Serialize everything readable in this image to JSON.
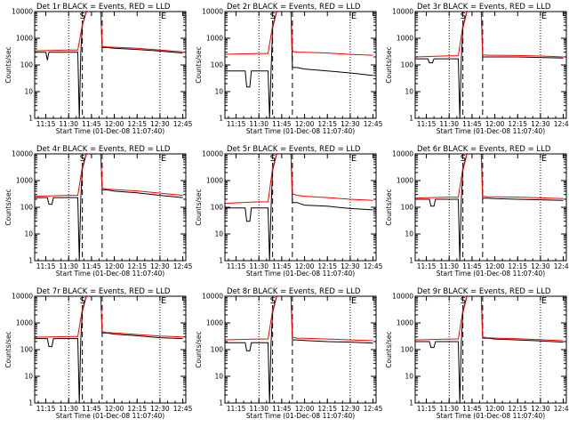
{
  "colors": {
    "events": "#000000",
    "lld": "#ff0000",
    "axes": "#000000",
    "background": "#ffffff"
  },
  "shared": {
    "xlabel": "Start Time (01-Dec-08 11:07:40)",
    "ylabel": "Counts/sec",
    "x_tick_labels": [
      "11:15",
      "11:30",
      "11:45",
      "12:00",
      "12:15",
      "12:30",
      "12:45"
    ],
    "y_tick_labels": [
      "1",
      "10",
      "100",
      "1000",
      "10000"
    ],
    "markers": [
      "S",
      "E"
    ]
  },
  "chart_data": [
    {
      "type": "line",
      "title": "Det 1r BLACK = Events, RED = LLD",
      "xlabel": "Start Time (01-Dec-08 11:07:40)",
      "ylabel": "Counts/sec",
      "x_ticks": [
        "11:15",
        "11:30",
        "11:45",
        "12:00",
        "12:15",
        "12:30",
        "12:45"
      ],
      "y_ticks": [
        "1",
        "10",
        "100",
        "1000",
        "10000"
      ],
      "y_scale": "log",
      "xlim": [
        "11:07:40",
        "12:47:00"
      ],
      "ylim": [
        1,
        10000
      ],
      "grid": false,
      "markers": [
        "S",
        "E"
      ],
      "series": [
        {
          "x": [
            "11:07",
            "11:12",
            "11:15",
            "11:16",
            "11:17",
            "11:20",
            "11:30",
            "11:36",
            "11:37",
            "11:38",
            "11:39",
            "11:42",
            "11:45",
            "11:51",
            "11:52",
            "11:55",
            "12:00",
            "12:15",
            "12:30",
            "12:45"
          ],
          "values": [
            300,
            300,
            300,
            150,
            300,
            300,
            300,
            300,
            1,
            300,
            3000,
            12000,
            12000,
            12000,
            450,
            450,
            420,
            380,
            330,
            280
          ]
        },
        {
          "x": [
            "11:07",
            "11:30",
            "11:36",
            "11:39",
            "11:42",
            "11:45",
            "11:51",
            "11:52",
            "11:55",
            "12:00",
            "12:15",
            "12:30",
            "12:45"
          ],
          "values": [
            340,
            360,
            360,
            3200,
            12000,
            12000,
            12000,
            500,
            470,
            460,
            420,
            360,
            310
          ]
        }
      ]
    },
    {
      "type": "line",
      "title": "Det 2r BLACK = Events, RED = LLD",
      "xlabel": "Start Time (01-Dec-08 11:07:40)",
      "ylabel": "Counts/sec",
      "x_ticks": [
        "11:15",
        "11:30",
        "11:45",
        "12:00",
        "12:15",
        "12:30",
        "12:45"
      ],
      "y_ticks": [
        "1",
        "10",
        "100",
        "1000",
        "10000"
      ],
      "y_scale": "log",
      "xlim": [
        "11:07:40",
        "12:47:00"
      ],
      "ylim": [
        1,
        10000
      ],
      "grid": false,
      "markers": [
        "S",
        "E"
      ],
      "series": [
        {
          "x": [
            "11:07",
            "11:15",
            "11:21",
            "11:22",
            "11:24",
            "11:25",
            "11:30",
            "11:36",
            "11:37",
            "11:38",
            "11:39",
            "11:42",
            "11:45",
            "11:51",
            "11:52",
            "11:55",
            "12:00",
            "12:15",
            "12:30",
            "12:45"
          ],
          "values": [
            60,
            60,
            60,
            15,
            15,
            60,
            60,
            60,
            1,
            60,
            2500,
            12000,
            12000,
            12000,
            80,
            80,
            70,
            60,
            50,
            40
          ]
        },
        {
          "x": [
            "11:07",
            "11:30",
            "11:36",
            "11:39",
            "11:42",
            "11:45",
            "11:51",
            "11:52",
            "11:55",
            "12:00",
            "12:15",
            "12:30",
            "12:45"
          ],
          "values": [
            250,
            270,
            270,
            3000,
            12000,
            12000,
            12000,
            320,
            300,
            300,
            280,
            250,
            230
          ]
        }
      ]
    },
    {
      "type": "line",
      "title": "Det 3r BLACK = Events, RED = LLD",
      "xlabel": "Start Time (01-Dec-08 11:07:40)",
      "ylabel": "Counts/sec",
      "x_ticks": [
        "11:15",
        "11:30",
        "11:45",
        "12:00",
        "12:15",
        "12:30",
        "12:45"
      ],
      "y_ticks": [
        "1",
        "10",
        "100",
        "1000",
        "10000"
      ],
      "y_scale": "log",
      "xlim": [
        "11:07:40",
        "12:47:00"
      ],
      "ylim": [
        1,
        10000
      ],
      "grid": false,
      "markers": [
        "S",
        "E"
      ],
      "series": [
        {
          "x": [
            "11:07",
            "11:15",
            "11:16",
            "11:17",
            "11:19",
            "11:20",
            "11:30",
            "11:36",
            "11:37",
            "11:38",
            "11:39",
            "11:42",
            "11:45",
            "11:51",
            "11:52",
            "11:55",
            "12:00",
            "12:15",
            "12:30",
            "12:45"
          ],
          "values": [
            170,
            170,
            170,
            120,
            120,
            170,
            170,
            170,
            1,
            170,
            2500,
            12000,
            12000,
            12000,
            200,
            200,
            200,
            200,
            190,
            180
          ]
        },
        {
          "x": [
            "11:07",
            "11:30",
            "11:36",
            "11:39",
            "11:42",
            "11:45",
            "11:51",
            "11:52",
            "11:55",
            "12:00",
            "12:15",
            "12:30",
            "12:45"
          ],
          "values": [
            200,
            220,
            220,
            3000,
            12000,
            12000,
            12000,
            240,
            230,
            230,
            225,
            215,
            200
          ]
        }
      ]
    },
    {
      "type": "line",
      "title": "Det 4r BLACK = Events, RED = LLD",
      "xlabel": "Start Time (01-Dec-08 11:07:40)",
      "ylabel": "Counts/sec",
      "x_ticks": [
        "11:15",
        "11:30",
        "11:45",
        "12:00",
        "12:15",
        "12:30",
        "12:45"
      ],
      "y_ticks": [
        "1",
        "10",
        "100",
        "1000",
        "10000"
      ],
      "y_scale": "log",
      "xlim": [
        "11:07:40",
        "12:47:00"
      ],
      "ylim": [
        1,
        10000
      ],
      "grid": false,
      "markers": [
        "S",
        "E"
      ],
      "series": [
        {
          "x": [
            "11:07",
            "11:15",
            "11:16",
            "11:17",
            "11:19",
            "11:20",
            "11:30",
            "11:36",
            "11:37",
            "11:38",
            "11:39",
            "11:42",
            "11:45",
            "11:51",
            "11:52",
            "11:55",
            "12:00",
            "12:15",
            "12:30",
            "12:45"
          ],
          "values": [
            230,
            230,
            230,
            130,
            130,
            230,
            230,
            230,
            1,
            230,
            2800,
            12000,
            12000,
            12000,
            450,
            450,
            400,
            350,
            280,
            230
          ]
        },
        {
          "x": [
            "11:07",
            "11:30",
            "11:36",
            "11:39",
            "11:42",
            "11:45",
            "11:51",
            "11:52",
            "11:55",
            "12:00",
            "12:15",
            "12:30",
            "12:45"
          ],
          "values": [
            260,
            280,
            280,
            3300,
            12000,
            12000,
            12000,
            520,
            480,
            460,
            410,
            340,
            280
          ]
        }
      ]
    },
    {
      "type": "line",
      "title": "Det 5r BLACK = Events, RED = LLD",
      "xlabel": "Start Time (01-Dec-08 11:07:40)",
      "ylabel": "Counts/sec",
      "x_ticks": [
        "11:15",
        "11:30",
        "11:45",
        "12:00",
        "12:15",
        "12:30",
        "12:45"
      ],
      "y_ticks": [
        "1",
        "10",
        "100",
        "1000",
        "10000"
      ],
      "y_scale": "log",
      "xlim": [
        "11:07:40",
        "12:47:00"
      ],
      "ylim": [
        1,
        10000
      ],
      "grid": false,
      "markers": [
        "S",
        "E"
      ],
      "series": [
        {
          "x": [
            "11:07",
            "11:15",
            "11:21",
            "11:22",
            "11:24",
            "11:25",
            "11:30",
            "11:36",
            "11:37",
            "11:38",
            "11:39",
            "11:42",
            "11:45",
            "11:51",
            "11:52",
            "11:55",
            "12:00",
            "12:15",
            "12:30",
            "12:45"
          ],
          "values": [
            95,
            95,
            95,
            30,
            30,
            95,
            95,
            95,
            1,
            95,
            2500,
            12000,
            12000,
            12000,
            150,
            150,
            120,
            110,
            90,
            80
          ]
        },
        {
          "x": [
            "11:07",
            "11:30",
            "11:36",
            "11:39",
            "11:42",
            "11:45",
            "11:51",
            "11:52",
            "11:55",
            "12:00",
            "12:15",
            "12:30",
            "12:45"
          ],
          "values": [
            140,
            160,
            160,
            3000,
            12000,
            12000,
            12000,
            320,
            280,
            260,
            230,
            200,
            180
          ]
        }
      ]
    },
    {
      "type": "line",
      "title": "Det 6r BLACK = Events, RED = LLD",
      "xlabel": "Start Time (01-Dec-08 11:07:40)",
      "ylabel": "Counts/sec",
      "x_ticks": [
        "11:15",
        "11:30",
        "11:45",
        "12:00",
        "12:15",
        "12:30",
        "12:45"
      ],
      "y_ticks": [
        "1",
        "10",
        "100",
        "1000",
        "10000"
      ],
      "y_scale": "log",
      "xlim": [
        "11:07:40",
        "12:47:00"
      ],
      "ylim": [
        1,
        10000
      ],
      "grid": false,
      "markers": [
        "S",
        "E"
      ],
      "series": [
        {
          "x": [
            "11:07",
            "11:15",
            "11:17",
            "11:18",
            "11:20",
            "11:21",
            "11:30",
            "11:36",
            "11:37",
            "11:38",
            "11:39",
            "11:42",
            "11:45",
            "11:51",
            "11:52",
            "11:55",
            "12:00",
            "12:15",
            "12:30",
            "12:45"
          ],
          "values": [
            200,
            200,
            200,
            110,
            110,
            200,
            200,
            200,
            1,
            200,
            2500,
            12000,
            12000,
            12000,
            220,
            220,
            210,
            200,
            190,
            180
          ]
        },
        {
          "x": [
            "11:07",
            "11:30",
            "11:36",
            "11:39",
            "11:42",
            "11:45",
            "11:51",
            "11:52",
            "11:55",
            "12:00",
            "12:15",
            "12:30",
            "12:45"
          ],
          "values": [
            220,
            240,
            240,
            3000,
            12000,
            12000,
            12000,
            260,
            250,
            245,
            240,
            225,
            210
          ]
        }
      ]
    },
    {
      "type": "line",
      "title": "Det 7r BLACK = Events, RED = LLD",
      "xlabel": "Start Time (01-Dec-08 11:07:40)",
      "ylabel": "Counts/sec",
      "x_ticks": [
        "11:15",
        "11:30",
        "11:45",
        "12:00",
        "12:15",
        "12:30",
        "12:45"
      ],
      "y_ticks": [
        "1",
        "10",
        "100",
        "1000",
        "10000"
      ],
      "y_scale": "log",
      "xlim": [
        "11:07:40",
        "12:47:00"
      ],
      "ylim": [
        1,
        10000
      ],
      "grid": false,
      "markers": [
        "S",
        "E"
      ],
      "series": [
        {
          "x": [
            "11:07",
            "11:15",
            "11:16",
            "11:17",
            "11:19",
            "11:20",
            "11:30",
            "11:36",
            "11:37",
            "11:38",
            "11:39",
            "11:42",
            "11:45",
            "11:51",
            "11:52",
            "11:55",
            "12:00",
            "12:15",
            "12:30",
            "12:45"
          ],
          "values": [
            260,
            260,
            260,
            130,
            130,
            260,
            260,
            260,
            1,
            260,
            2800,
            12000,
            12000,
            12000,
            420,
            420,
            380,
            330,
            280,
            260
          ]
        },
        {
          "x": [
            "11:07",
            "11:30",
            "11:36",
            "11:39",
            "11:42",
            "11:45",
            "11:51",
            "11:52",
            "11:55",
            "12:00",
            "12:15",
            "12:30",
            "12:45"
          ],
          "values": [
            290,
            310,
            310,
            3300,
            12000,
            12000,
            12000,
            470,
            440,
            420,
            370,
            320,
            300
          ]
        }
      ]
    },
    {
      "type": "line",
      "title": "Det 8r BLACK = Events, RED = LLD",
      "xlabel": "Start Time (01-Dec-08 11:07:40)",
      "ylabel": "Counts/sec",
      "x_ticks": [
        "11:15",
        "11:30",
        "11:45",
        "12:00",
        "12:15",
        "12:30",
        "12:45"
      ],
      "y_ticks": [
        "1",
        "10",
        "100",
        "1000",
        "10000"
      ],
      "y_scale": "log",
      "xlim": [
        "11:07:40",
        "12:47:00"
      ],
      "ylim": [
        1,
        10000
      ],
      "grid": false,
      "markers": [
        "S",
        "E"
      ],
      "series": [
        {
          "x": [
            "11:07",
            "11:15",
            "11:21",
            "11:22",
            "11:24",
            "11:25",
            "11:30",
            "11:36",
            "11:37",
            "11:38",
            "11:39",
            "11:42",
            "11:45",
            "11:51",
            "11:52",
            "11:55",
            "12:00",
            "12:15",
            "12:30",
            "12:45"
          ],
          "values": [
            180,
            180,
            180,
            90,
            90,
            180,
            180,
            180,
            1,
            180,
            2500,
            12000,
            12000,
            12000,
            230,
            230,
            220,
            200,
            190,
            175
          ]
        },
        {
          "x": [
            "11:07",
            "11:30",
            "11:36",
            "11:39",
            "11:42",
            "11:45",
            "11:51",
            "11:52",
            "11:55",
            "12:00",
            "12:15",
            "12:30",
            "12:45"
          ],
          "values": [
            230,
            250,
            250,
            3000,
            12000,
            12000,
            12000,
            290,
            270,
            265,
            250,
            230,
            215
          ]
        }
      ]
    },
    {
      "type": "line",
      "title": "Det 9r BLACK = Events, RED = LLD",
      "xlabel": "Start Time (01-Dec-08 11:07:40)",
      "ylabel": "Counts/sec",
      "x_ticks": [
        "11:15",
        "11:30",
        "11:45",
        "12:00",
        "12:15",
        "12:30",
        "12:45"
      ],
      "y_ticks": [
        "1",
        "10",
        "100",
        "1000",
        "10000"
      ],
      "y_scale": "log",
      "xlim": [
        "11:07:40",
        "12:47:00"
      ],
      "ylim": [
        1,
        10000
      ],
      "grid": false,
      "markers": [
        "S",
        "E"
      ],
      "series": [
        {
          "x": [
            "11:07",
            "11:15",
            "11:17",
            "11:18",
            "11:20",
            "11:21",
            "11:30",
            "11:36",
            "11:37",
            "11:38",
            "11:39",
            "11:42",
            "11:45",
            "11:51",
            "11:52",
            "11:55",
            "12:00",
            "12:15",
            "12:30",
            "12:45"
          ],
          "values": [
            200,
            200,
            200,
            120,
            120,
            200,
            200,
            200,
            1,
            200,
            2500,
            12000,
            12000,
            12000,
            270,
            270,
            250,
            230,
            210,
            190
          ]
        },
        {
          "x": [
            "11:07",
            "11:30",
            "11:36",
            "11:39",
            "11:42",
            "11:45",
            "11:51",
            "11:52",
            "11:55",
            "12:00",
            "12:15",
            "12:30",
            "12:45"
          ],
          "values": [
            230,
            250,
            250,
            3000,
            12000,
            12000,
            12000,
            300,
            280,
            270,
            255,
            235,
            215
          ]
        }
      ]
    }
  ]
}
